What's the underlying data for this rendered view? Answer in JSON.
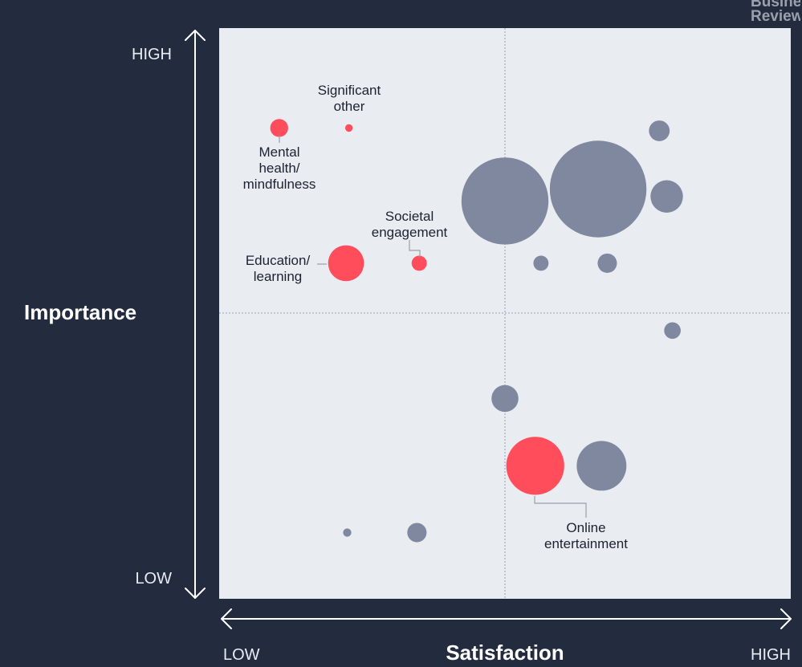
{
  "brand": {
    "line1": "Business",
    "line2": "Review"
  },
  "colors": {
    "background": "#232b3e",
    "plot": "#e9ecf1",
    "highlight": "#ff4d5c",
    "other": "#7f889e",
    "axis_text": "#e9edf3"
  },
  "chart_data": {
    "type": "scatter",
    "title": "",
    "xlabel": "Satisfaction",
    "ylabel": "Importance",
    "x_ticks": [
      "LOW",
      "HIGH"
    ],
    "y_ticks": [
      "LOW",
      "HIGH"
    ],
    "xlim": [
      0,
      100
    ],
    "ylim": [
      0,
      100
    ],
    "grid": false,
    "quadrant_dividers": {
      "x": 50,
      "y": 50
    },
    "legend": "none",
    "series": [
      {
        "highlighted": true,
        "color": "#ff4d5c",
        "points": [
          {
            "label": [
              "Significant",
              "other"
            ],
            "x": 22.7,
            "y": 82.5,
            "size": 1.1
          },
          {
            "label": [
              "Mental",
              "health/",
              "mindfulness"
            ],
            "x": 10.5,
            "y": 82.5,
            "size": 2.6
          },
          {
            "label": [
              "Societal",
              "engagement"
            ],
            "x": 35.0,
            "y": 58.8,
            "size": 2.2
          },
          {
            "label": [
              "Education/",
              "learning"
            ],
            "x": 22.2,
            "y": 58.8,
            "size": 5.2
          },
          {
            "label": [
              "Online",
              "entertainment"
            ],
            "x": 55.3,
            "y": 23.3,
            "size": 8.4
          }
        ]
      },
      {
        "highlighted": false,
        "color": "#7f889e",
        "points": [
          {
            "x": 50.0,
            "y": 69.7,
            "size": 12.6
          },
          {
            "x": 66.3,
            "y": 71.8,
            "size": 14.0
          },
          {
            "x": 77.0,
            "y": 82.0,
            "size": 3.0
          },
          {
            "x": 78.3,
            "y": 70.5,
            "size": 4.7
          },
          {
            "x": 56.3,
            "y": 58.8,
            "size": 2.2
          },
          {
            "x": 67.9,
            "y": 58.8,
            "size": 2.8
          },
          {
            "x": 79.3,
            "y": 47.0,
            "size": 2.4
          },
          {
            "x": 50.0,
            "y": 35.1,
            "size": 3.9
          },
          {
            "x": 66.9,
            "y": 23.3,
            "size": 7.2
          },
          {
            "x": 22.4,
            "y": 11.6,
            "size": 1.2
          },
          {
            "x": 34.6,
            "y": 11.6,
            "size": 2.8
          }
        ]
      }
    ]
  }
}
